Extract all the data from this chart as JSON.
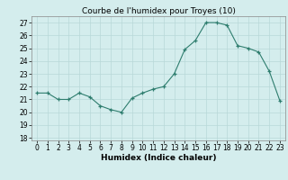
{
  "x": [
    0,
    1,
    2,
    3,
    4,
    5,
    6,
    7,
    8,
    9,
    10,
    11,
    12,
    13,
    14,
    15,
    16,
    17,
    18,
    19,
    20,
    21,
    22,
    23
  ],
  "y": [
    21.5,
    21.5,
    21.0,
    21.0,
    21.5,
    21.2,
    20.5,
    20.2,
    20.0,
    21.1,
    21.5,
    21.8,
    22.0,
    23.0,
    24.9,
    25.6,
    27.0,
    27.0,
    26.8,
    25.2,
    25.0,
    24.7,
    23.2,
    20.9
  ],
  "line_color": "#2e7d6e",
  "marker": "+",
  "marker_size": 3,
  "title": "Courbe de l'humidex pour Troyes (10)",
  "xlabel": "Humidex (Indice chaleur)",
  "ylabel": "",
  "ylim": [
    17.8,
    27.5
  ],
  "xlim": [
    -0.5,
    23.5
  ],
  "yticks": [
    18,
    19,
    20,
    21,
    22,
    23,
    24,
    25,
    26,
    27
  ],
  "xticks": [
    0,
    1,
    2,
    3,
    4,
    5,
    6,
    7,
    8,
    9,
    10,
    11,
    12,
    13,
    14,
    15,
    16,
    17,
    18,
    19,
    20,
    21,
    22,
    23
  ],
  "bg_color": "#d4eded",
  "grid_color": "#b8d8d8",
  "title_fontsize": 6.5,
  "label_fontsize": 6.5,
  "tick_fontsize": 5.5
}
